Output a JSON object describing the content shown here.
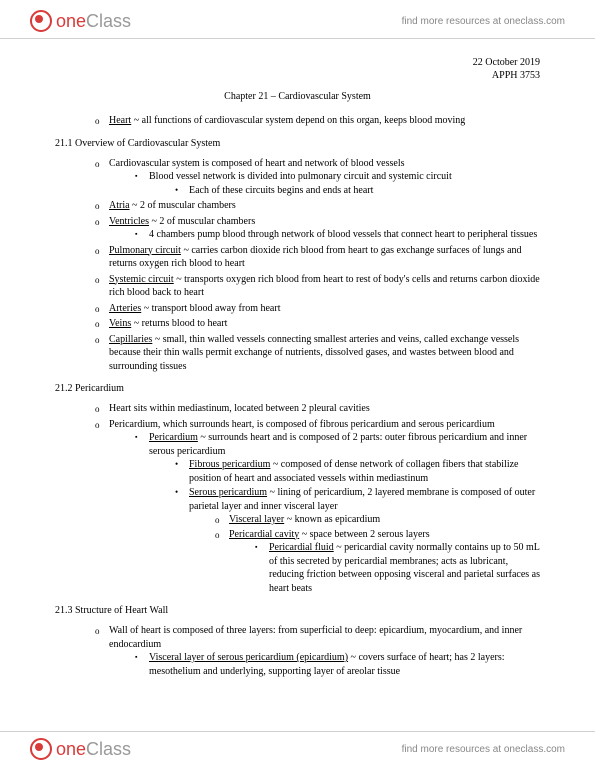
{
  "brand": {
    "one": "one",
    "class": "Class",
    "link": "find more resources at oneclass.com"
  },
  "meta": {
    "date": "22 October 2019",
    "course": "APPH 3753",
    "chapter": "Chapter 21 – Cardiovascular System"
  },
  "intro": {
    "heart_term": "Heart",
    "heart_def": " ~ all functions of cardiovascular system depend on this organ, keeps blood moving"
  },
  "s1": {
    "head": "21.1 Overview of Cardiovascular System",
    "i1": "Cardiovascular system is composed of heart and network of blood vessels",
    "i1a": "Blood vessel network is divided into pulmonary circuit and systemic circuit",
    "i1a1": "Each of these circuits begins and ends at heart",
    "atria_t": "Atria",
    "atria_d": " ~ 2 of muscular chambers",
    "vent_t": "Ventricles",
    "vent_d": " ~ 2 of muscular chambers",
    "vent_s1": "4 chambers pump blood through network of blood vessels that connect heart to peripheral tissues",
    "pulm_t": "Pulmonary circuit",
    "pulm_d": " ~ carries carbon dioxide rich blood from heart to gas exchange surfaces of lungs and returns oxygen rich blood to heart",
    "sys_t": "Systemic circuit",
    "sys_d": " ~ transports oxygen rich blood from heart to rest of body's cells and returns carbon dioxide rich blood back to heart",
    "art_t": "Arteries",
    "art_d": " ~ transport blood away from heart",
    "vein_t": "Veins",
    "vein_d": " ~ returns blood to heart",
    "cap_t": "Capillaries",
    "cap_d": " ~ small, thin walled vessels connecting smallest arteries and veins, called exchange vessels because their thin walls permit exchange of nutrients, dissolved gases, and wastes between blood and surrounding tissues"
  },
  "s2": {
    "head": "21.2 Pericardium",
    "i1": "Heart sits within mediastinum, located between 2 pleural cavities",
    "i2": "Pericardium, which surrounds heart, is composed of fibrous pericardium and serous pericardium",
    "peri_t": "Pericardium",
    "peri_d": " ~ surrounds heart and is composed of 2 parts: outer fibrous pericardium and inner serous pericardium",
    "fib_t": "Fibrous pericardium",
    "fib_d": " ~ composed of dense network of collagen fibers that stabilize position of heart and associated vessels within mediastinum",
    "ser_t": "Serous pericardium",
    "ser_d": " ~ lining of pericardium, 2 layered membrane is composed of outer parietal layer and inner visceral layer",
    "visc_t": "Visceral layer",
    "visc_d": " ~ known as epicardium",
    "cav_t": "Pericardial cavity",
    "cav_d": " ~ space between 2 serous layers",
    "fluid_t": "Pericardial fluid",
    "fluid_d": " ~ pericardial cavity normally contains up to 50 mL of this secreted by pericardial membranes; acts as lubricant, reducing friction between opposing visceral and parietal surfaces as heart beats"
  },
  "s3": {
    "head": "21.3 Structure of Heart Wall",
    "i1": "Wall of heart is composed of three layers: from superficial to deep: epicardium, myocardium, and inner endocardium",
    "vl_t": "Visceral layer of serous pericardium (epicardium)",
    "vl_d": " ~ covers surface of heart; has 2 layers: mesothelium and underlying, supporting layer of areolar tissue"
  }
}
